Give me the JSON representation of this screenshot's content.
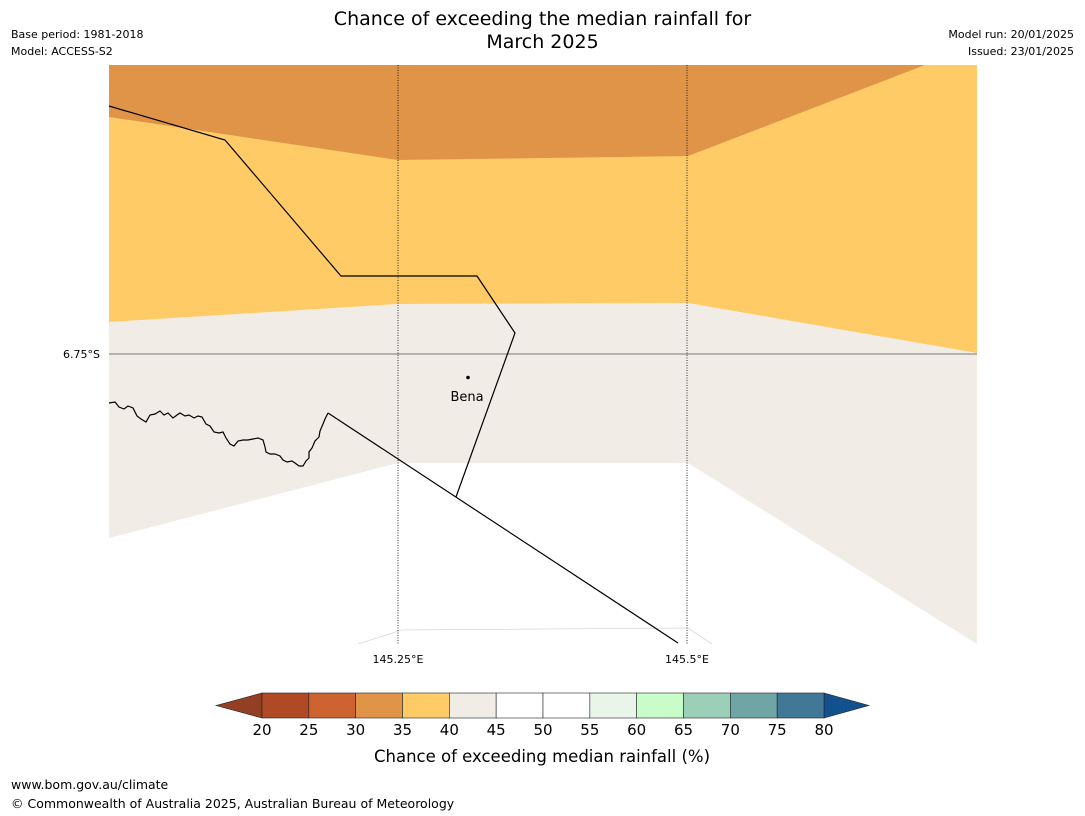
{
  "title": {
    "line1": "Chance of exceeding the median rainfall for",
    "line2": "March 2025"
  },
  "meta_left": {
    "base_period": "Base period: 1981-2018",
    "model": "Model: ACCESS-S2"
  },
  "meta_right": {
    "model_run": "Model run: 20/01/2025",
    "issued": "Issued: 23/01/2025"
  },
  "map": {
    "latitude_labels": [
      "6.75°S"
    ],
    "longitude_labels": [
      "145.25°E",
      "145.5°E"
    ],
    "place_label": "Bena"
  },
  "colorbar": {
    "label": "Chance of exceeding median rainfall (%)",
    "ticks": [
      "20",
      "25",
      "30",
      "35",
      "40",
      "45",
      "50",
      "55",
      "60",
      "65",
      "70",
      "75",
      "80"
    ],
    "colors": [
      "#b04a24",
      "#cc6330",
      "#e09448",
      "#fecb67",
      "#f1ece6",
      "#ffffff",
      "#ffffff",
      "#e8f5e8",
      "#c8fcc8",
      "#9ccfb8",
      "#6fa5a5",
      "#417898"
    ],
    "under_color": "#923f26",
    "over_color": "#12508e"
  },
  "footer": {
    "url": "www.bom.gov.au/climate",
    "copyright": "© Commonwealth of Australia 2025, Australian Bureau of Meteorology"
  }
}
